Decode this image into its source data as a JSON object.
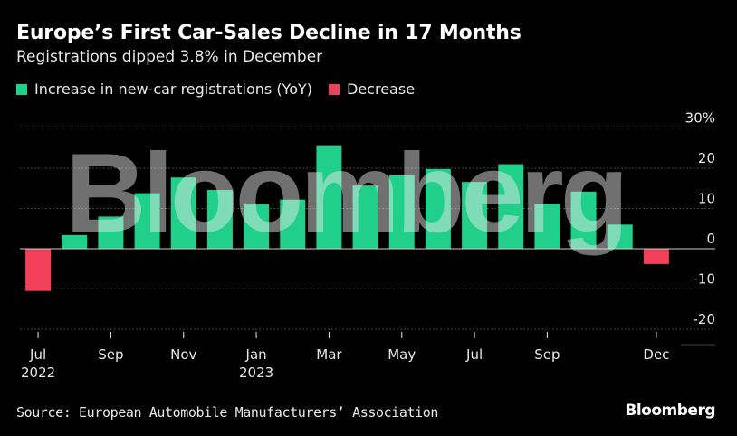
{
  "header": {
    "title": "Europe’s First Car-Sales Decline in 17 Months",
    "subtitle": "Registrations dipped 3.8% in December"
  },
  "legend": {
    "increase_label": "Increase in new-car registrations (YoY)",
    "decrease_label": "Decrease"
  },
  "colors": {
    "increase": "#1fcf8a",
    "decrease": "#f2405a",
    "grid": "#444444",
    "zero_line": "#cccccc",
    "text": "#e8e8e8"
  },
  "chart_data": {
    "type": "bar",
    "title": "Europe’s First Car-Sales Decline in 17 Months",
    "subtitle": "Registrations dipped 3.8% in December",
    "categories": [
      "Jul 2022",
      "Aug 2022",
      "Sep 2022",
      "Oct 2022",
      "Nov 2022",
      "Dec 2022",
      "Jan 2023",
      "Feb 2023",
      "Mar 2023",
      "Apr 2023",
      "May 2023",
      "Jun 2023",
      "Jul 2023",
      "Aug 2023",
      "Sep 2023",
      "Oct 2023",
      "Nov 2023",
      "Dec 2023"
    ],
    "values": [
      -10.5,
      3.4,
      8.0,
      13.8,
      17.7,
      14.6,
      11.0,
      12.2,
      25.7,
      15.7,
      18.3,
      19.8,
      16.6,
      21.0,
      11.1,
      14.2,
      6.0,
      -3.8
    ],
    "y_tick_values": [
      30,
      20,
      10,
      0,
      -10,
      -20
    ],
    "y_tick_labels": [
      "30%",
      "20",
      "10",
      "0",
      "-10",
      "-20"
    ],
    "x_tick_labels": [
      {
        "index": 0,
        "month": "Jul",
        "year": "2022"
      },
      {
        "index": 2,
        "month": "Sep",
        "year": ""
      },
      {
        "index": 4,
        "month": "Nov",
        "year": ""
      },
      {
        "index": 6,
        "month": "Jan",
        "year": "2023"
      },
      {
        "index": 8,
        "month": "Mar",
        "year": ""
      },
      {
        "index": 10,
        "month": "May",
        "year": ""
      },
      {
        "index": 12,
        "month": "Jul",
        "year": ""
      },
      {
        "index": 14,
        "month": "Sep",
        "year": ""
      },
      {
        "index": 17,
        "month": "Dec",
        "year": ""
      }
    ],
    "xlabel": "",
    "ylabel": "",
    "ylim": [
      -20,
      30
    ],
    "grid": true
  },
  "footer": {
    "source": "Source: European Automobile Manufacturers’ Association",
    "brand": "Bloomberg"
  },
  "watermark": "Bloomberg"
}
